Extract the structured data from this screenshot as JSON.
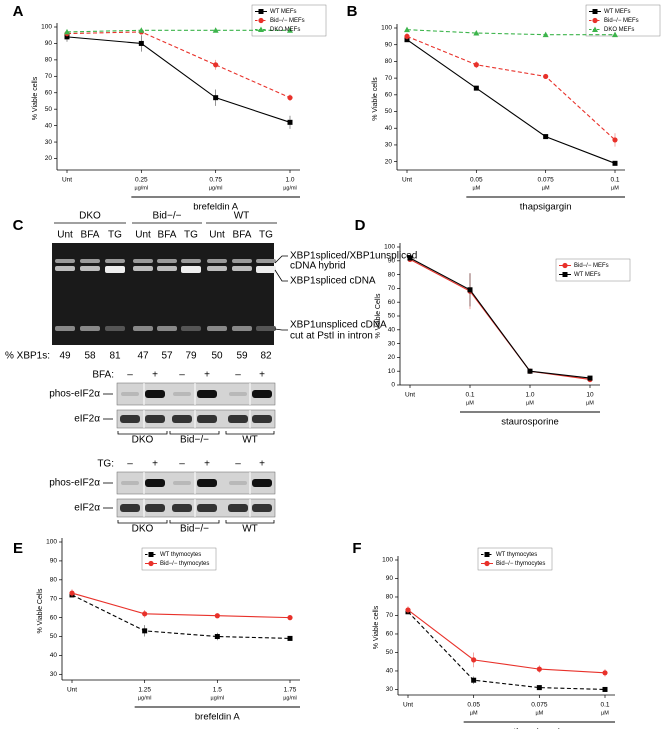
{
  "chart_data": [
    {
      "type": "line",
      "panel": "A",
      "xlabel": "brefeldin A",
      "ylabel": "% Viable cells",
      "categories": [
        "Unt",
        "0.25",
        "0.75",
        "1.0"
      ],
      "category_unit": "µg/ml",
      "ylim": [
        13,
        100
      ],
      "yticks": [
        20,
        30,
        40,
        50,
        60,
        70,
        80,
        90,
        100
      ],
      "legend": "upper right",
      "series": [
        {
          "name": "WT MEFs",
          "color": "#000000",
          "marker": "square",
          "dash": false,
          "values": [
            94,
            90,
            57,
            42
          ],
          "errors": [
            3,
            5,
            5,
            4
          ]
        },
        {
          "name": "Bid−/− MEFs",
          "color": "#e8312a",
          "marker": "circle",
          "dash": true,
          "values": [
            96,
            97,
            77,
            57
          ],
          "errors": [
            2,
            1,
            3,
            2
          ]
        },
        {
          "name": "DKO MEFs",
          "color": "#3cb44b",
          "marker": "triangle",
          "dash": true,
          "values": [
            97,
            98,
            98,
            98
          ],
          "errors": [
            1,
            1,
            1,
            1
          ]
        }
      ]
    },
    {
      "type": "line",
      "panel": "B",
      "xlabel": "thapsigargin",
      "ylabel": "% Viable cells",
      "categories": [
        "Unt",
        "0.05",
        "0.075",
        "0.1"
      ],
      "category_unit": "µM",
      "ylim": [
        15,
        100
      ],
      "yticks": [
        20,
        30,
        40,
        50,
        60,
        70,
        80,
        90,
        100
      ],
      "legend": "upper right",
      "series": [
        {
          "name": "WT MEFs",
          "color": "#000000",
          "marker": "square",
          "dash": false,
          "values": [
            93,
            64,
            35,
            19
          ],
          "errors": [
            1,
            1,
            1,
            1
          ]
        },
        {
          "name": "Bid−/− MEFs",
          "color": "#e8312a",
          "marker": "circle",
          "dash": true,
          "values": [
            95,
            78,
            71,
            33
          ],
          "errors": [
            2,
            2,
            1,
            4
          ]
        },
        {
          "name": "DKO MEFs",
          "color": "#3cb44b",
          "marker": "triangle",
          "dash": true,
          "values": [
            99,
            97,
            96,
            96
          ],
          "errors": [
            1,
            1,
            1,
            1
          ]
        }
      ]
    },
    {
      "type": "line",
      "panel": "D",
      "xlabel": "staurosporine",
      "ylabel": "% Viable Cells",
      "categories": [
        "Unt",
        "0.1",
        "1.0",
        "10"
      ],
      "category_unit": "µM",
      "ylim": [
        0,
        100
      ],
      "yticks": [
        0,
        10,
        20,
        30,
        40,
        50,
        60,
        70,
        80,
        90,
        100
      ],
      "legend": "upper right",
      "series": [
        {
          "name": "Bid−/− MEFs",
          "color": "#e8312a",
          "marker": "circle",
          "dash": false,
          "values": [
            91,
            68,
            10,
            4
          ],
          "errors": [
            1,
            13,
            2,
            2
          ]
        },
        {
          "name": "WT MEFs",
          "color": "#000000",
          "marker": "square",
          "dash": false,
          "values": [
            92,
            69,
            10,
            5
          ],
          "errors": [
            1,
            12,
            1,
            1
          ]
        }
      ]
    },
    {
      "type": "line",
      "panel": "E",
      "xlabel": "brefeldin A",
      "ylabel": "% Viable Cells",
      "categories": [
        "Unt",
        "1.25",
        "1.5",
        "1.75"
      ],
      "category_unit": "µg/ml",
      "ylim": [
        27,
        100
      ],
      "yticks": [
        30,
        40,
        50,
        60,
        70,
        80,
        90,
        100
      ],
      "legend": "upper center",
      "series": [
        {
          "name": "WT thymocytes",
          "color": "#000000",
          "marker": "square",
          "dash": true,
          "values": [
            72,
            53,
            50,
            49
          ],
          "errors": [
            1,
            3,
            2,
            1
          ]
        },
        {
          "name": "Bid−/− thymocytes",
          "color": "#e8312a",
          "marker": "circle",
          "dash": false,
          "values": [
            73,
            62,
            61,
            60
          ],
          "errors": [
            2,
            2,
            1,
            1
          ]
        }
      ]
    },
    {
      "type": "line",
      "panel": "F",
      "xlabel": "thapsigargin",
      "ylabel": "% Viable cells",
      "categories": [
        "Unt",
        "0.05",
        "0.075",
        "0.1"
      ],
      "category_unit": "µM",
      "ylim": [
        27,
        100
      ],
      "yticks": [
        30,
        40,
        50,
        60,
        70,
        80,
        90,
        100
      ],
      "legend": "upper center",
      "series": [
        {
          "name": "WT thymocytes",
          "color": "#000000",
          "marker": "square",
          "dash": true,
          "values": [
            72,
            35,
            31,
            30
          ],
          "errors": [
            1,
            2,
            1,
            1
          ]
        },
        {
          "name": "Bid−/− thymocytes",
          "color": "#e8312a",
          "marker": "circle",
          "dash": false,
          "values": [
            73,
            46,
            41,
            39
          ],
          "errors": [
            2,
            4,
            2,
            2
          ]
        }
      ]
    }
  ],
  "panel_c": {
    "label": "C",
    "gel": {
      "groups": [
        "DKO",
        "Bid−/−",
        "WT"
      ],
      "lanes": [
        "Unt",
        "BFA",
        "TG"
      ],
      "annotations": [
        "XBP1spliced/XBP1unspliced",
        "cDNA hybrid",
        "XBP1spliced cDNA",
        "XBP1unspliced cDNA",
        "cut at PstI in intron"
      ],
      "xbp1s_label": "% XBP1s:",
      "xbp1s_values": [
        49,
        58,
        81,
        47,
        57,
        79,
        50,
        59,
        82
      ]
    },
    "blots": [
      {
        "treatment": "BFA:",
        "signs": [
          "–",
          "+",
          "–",
          "+",
          "–",
          "+"
        ],
        "rows": [
          "phos-eIF2α",
          "eIF2α"
        ],
        "groups": [
          "DKO",
          "Bid−/−",
          "WT"
        ]
      },
      {
        "treatment": "TG:",
        "signs": [
          "–",
          "+",
          "–",
          "+",
          "–",
          "+"
        ],
        "rows": [
          "phos-eIF2α",
          "eIF2α"
        ],
        "groups": [
          "DKO",
          "Bid−/−",
          "WT"
        ]
      }
    ]
  }
}
